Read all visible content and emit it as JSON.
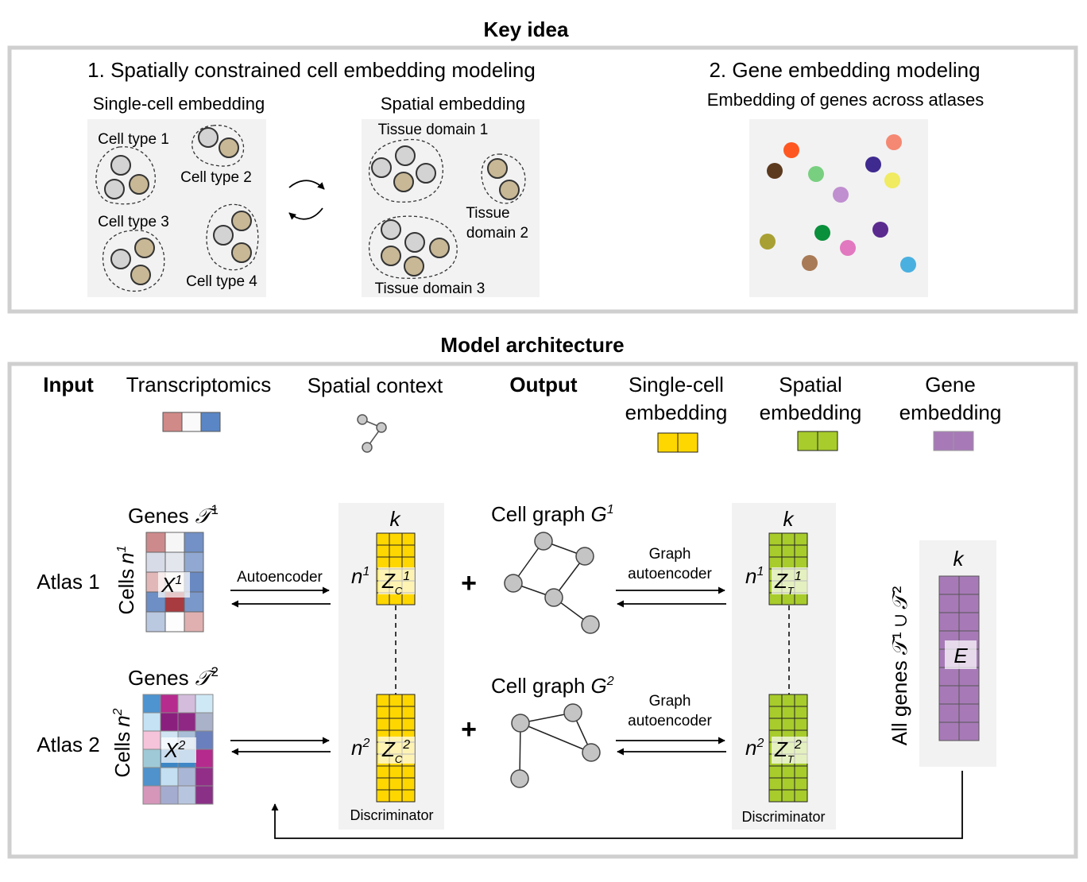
{
  "colors": {
    "frame": "#cfcfcf",
    "panel": "#f2f2f2",
    "grey_cell": "#d3d3d3",
    "tan_cell": "#c8b896",
    "single_cell_embedding": "#ffd700",
    "spatial_embedding": "#a8cc2c",
    "gene_embedding": "#a77ab7"
  },
  "key_idea": {
    "title": "Key idea",
    "section1_title": "1. Spatially constrained cell embedding modeling",
    "single_cell_title": "Single-cell embedding",
    "cell_types": [
      "Cell type 1",
      "Cell type 2",
      "Cell type 3",
      "Cell type 4"
    ],
    "spatial_title": "Spatial embedding",
    "tissue_domain_1": "Tissue domain 1",
    "tissue_domain_2_line1": "Tissue",
    "tissue_domain_2_line2": "domain 2",
    "tissue_domain_3": "Tissue domain 3",
    "section2_title": "2. Gene embedding modeling",
    "gene_subtitle": "Embedding of genes across atlases",
    "gene_dot_colors": [
      "#ff5722",
      "#f58872",
      "#5c3a1e",
      "#79cf80",
      "#3f2a8f",
      "#f0eb60",
      "#c08fd0",
      "#a8a032",
      "#0a8f3b",
      "#5a2a8f",
      "#e278c0",
      "#a87a55",
      "#4ab0e0"
    ]
  },
  "model": {
    "title": "Model architecture",
    "input_label": "Input",
    "transcriptomics_label": "Transcriptomics",
    "spatial_context_label": "Spatial context",
    "output_label": "Output",
    "single_cell_line1": "Single-cell",
    "single_cell_line2": "embedding",
    "spatial_line1": "Spatial",
    "spatial_line2": "embedding",
    "gene_line1": "Gene",
    "gene_line2": "embedding",
    "genes_label": "Genes",
    "genes_sym": "𝒯",
    "sup1": "1",
    "sup2": "2",
    "atlas1": "Atlas 1",
    "atlas2": "Atlas 2",
    "cells_label": "Cells",
    "n_label": "n",
    "x_label": "X",
    "autoencoder": "Autoencoder",
    "k_label": "k",
    "z_label": "Z",
    "sub_c": "C",
    "sub_t": "T",
    "plus": "+",
    "cell_graph_label": "Cell graph",
    "g_label": "G",
    "graph_line1": "Graph",
    "graph_line2": "autoencoder",
    "discriminator": "Discriminator",
    "all_genes": "All genes 𝒯¹ ∪ 𝒯²",
    "e_label": "E"
  }
}
